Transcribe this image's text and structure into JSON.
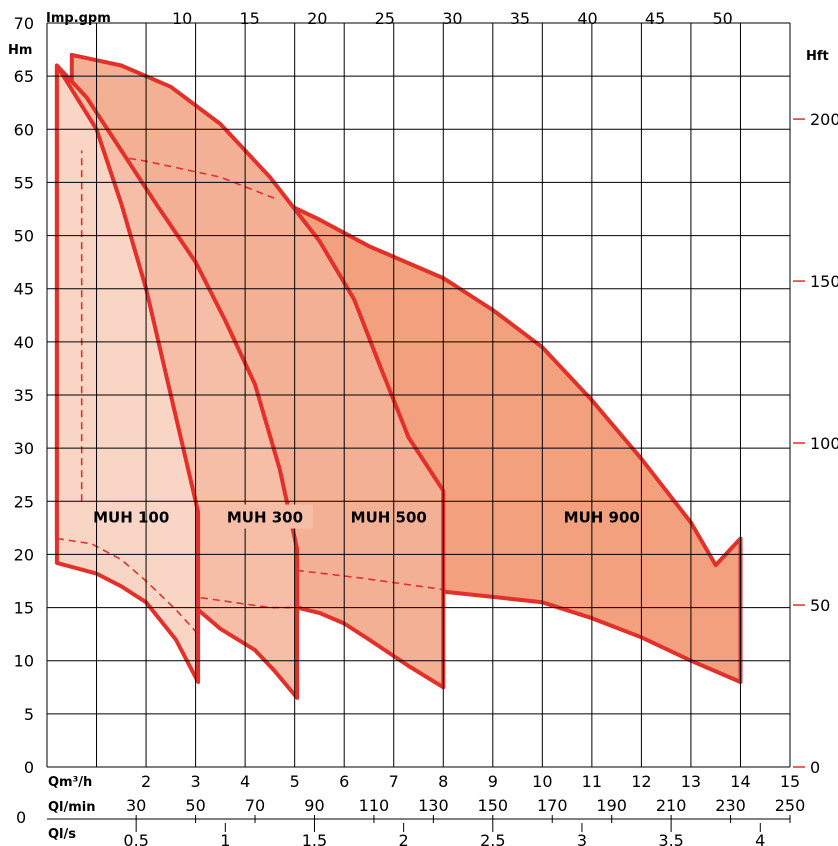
{
  "chart_data": {
    "type": "area",
    "y_left": {
      "unit": "Hm",
      "ticks": [
        0,
        5,
        10,
        15,
        20,
        25,
        30,
        35,
        40,
        45,
        50,
        55,
        60,
        65,
        70
      ],
      "lim": [
        0,
        70
      ]
    },
    "y_right": {
      "unit": "Hft",
      "ticks": [
        0,
        50,
        100,
        150,
        200
      ]
    },
    "x_top": {
      "unit": "Imp.gpm",
      "ticks": [
        10,
        15,
        20,
        25,
        30,
        35,
        40,
        45,
        50
      ]
    },
    "x_m3h": {
      "unit": "Qm³/h",
      "ticks": [
        2,
        3,
        4,
        5,
        6,
        7,
        8,
        9,
        10,
        11,
        12,
        13,
        14,
        15
      ],
      "lim": [
        0,
        15
      ]
    },
    "x_lmin": {
      "unit": "Ql/min",
      "ticks": [
        30,
        50,
        70,
        90,
        110,
        130,
        150,
        170,
        190,
        210,
        230,
        250
      ]
    },
    "x_ls": {
      "unit": "Ql/s",
      "ticks": [
        "0.5",
        "1",
        "1.5",
        "2",
        "2.5",
        "3",
        "3.5",
        "4"
      ]
    },
    "series": [
      {
        "name": "MUH 100",
        "color": "#f8d5c5",
        "outline": [
          [
            0.2,
            66
          ],
          [
            1.0,
            60
          ],
          [
            1.5,
            53
          ],
          [
            2.0,
            45
          ],
          [
            2.5,
            35
          ],
          [
            2.85,
            28
          ],
          [
            3.05,
            24
          ],
          [
            3.05,
            8
          ],
          [
            2.6,
            12
          ],
          [
            2.0,
            15.5
          ],
          [
            1.5,
            17
          ],
          [
            1.0,
            18.2
          ],
          [
            0.2,
            19.2
          ]
        ],
        "dashed": [
          [
            [
              0.7,
              25
            ],
            [
              0.7,
              58
            ]
          ],
          [
            [
              0.2,
              21.5
            ],
            [
              0.9,
              21
            ],
            [
              1.5,
              19.5
            ],
            [
              2.0,
              17.5
            ],
            [
              2.6,
              14.8
            ],
            [
              3.05,
              12.5
            ]
          ]
        ]
      },
      {
        "name": "MUH 300",
        "color": "#f6bea7",
        "outline": [
          [
            0.2,
            66
          ],
          [
            0.8,
            63
          ],
          [
            1.5,
            58
          ],
          [
            2.2,
            53
          ],
          [
            3.0,
            47.5
          ],
          [
            3.6,
            42
          ],
          [
            4.2,
            36
          ],
          [
            4.7,
            28
          ],
          [
            5.05,
            20.5
          ],
          [
            5.05,
            6.5
          ],
          [
            4.6,
            9
          ],
          [
            4.2,
            11
          ],
          [
            3.5,
            13
          ],
          [
            3.0,
            15
          ],
          [
            2.5,
            17
          ],
          [
            2.0,
            18.5
          ],
          [
            1.0,
            20.4
          ],
          [
            0.2,
            21.5
          ]
        ],
        "dashed": [
          [
            [
              0.2,
              21.5
            ],
            [
              1.3,
              19.7
            ],
            [
              2.3,
              17.5
            ],
            [
              3.0,
              16
            ],
            [
              4.5,
              15
            ],
            [
              5.05,
              15
            ]
          ]
        ]
      },
      {
        "name": "MUH 500",
        "color": "#f4b095",
        "outline": [
          [
            0.5,
            67
          ],
          [
            1.5,
            66
          ],
          [
            2.5,
            64
          ],
          [
            3.5,
            60.5
          ],
          [
            4.5,
            55.5
          ],
          [
            5.5,
            49.5
          ],
          [
            6.2,
            44
          ],
          [
            6.7,
            38
          ],
          [
            7.3,
            31
          ],
          [
            8.0,
            26
          ],
          [
            8.0,
            7.5
          ],
          [
            7.3,
            9.5
          ],
          [
            6.5,
            12
          ],
          [
            6.0,
            13.5
          ],
          [
            5.5,
            14.5
          ],
          [
            5.05,
            15
          ],
          [
            4.0,
            17
          ],
          [
            3.0,
            18.8
          ],
          [
            2.0,
            20.3
          ],
          [
            1.0,
            21
          ],
          [
            0.5,
            21.5
          ]
        ],
        "dashed": [
          [
            [
              0.5,
              21.5
            ],
            [
              2.0,
              20
            ],
            [
              3.0,
              19
            ],
            [
              5.05,
              18.5
            ],
            [
              6.3,
              17.8
            ],
            [
              8.0,
              16.7
            ]
          ],
          [
            [
              0.7,
              58
            ],
            [
              2.0,
              57
            ],
            [
              3.5,
              55.5
            ],
            [
              4.6,
              53.5
            ]
          ]
        ]
      },
      {
        "name": "MUH 900",
        "color": "#f2a07e",
        "outline": [
          [
            4.6,
            53.5
          ],
          [
            5.5,
            51.5
          ],
          [
            6.5,
            49
          ],
          [
            8.0,
            46
          ],
          [
            9.0,
            43
          ],
          [
            10.0,
            39.5
          ],
          [
            11.0,
            34.5
          ],
          [
            12.0,
            29
          ],
          [
            13.0,
            23
          ],
          [
            13.5,
            19
          ],
          [
            14.0,
            21.5
          ],
          [
            14.0,
            8
          ],
          [
            13.0,
            10
          ],
          [
            12.0,
            12.2
          ],
          [
            11.0,
            14
          ],
          [
            10.0,
            15.5
          ],
          [
            9.0,
            16
          ],
          [
            8.0,
            16.5
          ],
          [
            7.0,
            17.5
          ],
          [
            6.5,
            18.2
          ],
          [
            6.0,
            18.8
          ]
        ]
      }
    ],
    "labels": [
      "MUH 100",
      "MUH 300",
      "MUH 500",
      "MUH 900"
    ]
  }
}
